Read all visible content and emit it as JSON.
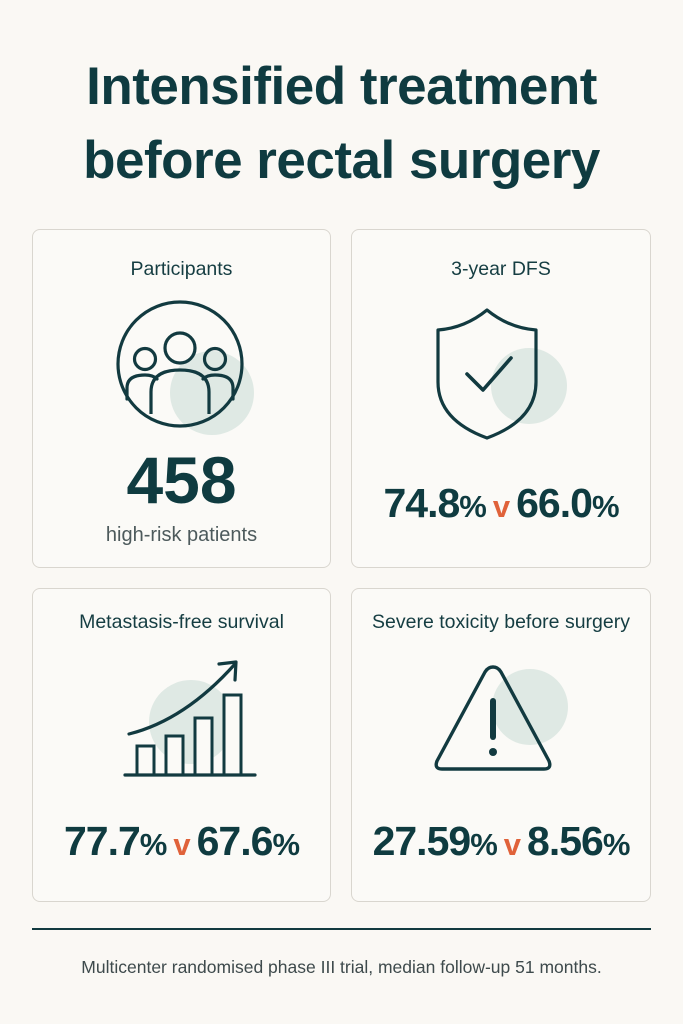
{
  "title": {
    "line1": "Intensified treatment",
    "line2": "before rectal surgery"
  },
  "colors": {
    "primary": "#0f3b40",
    "accent": "#e0623a",
    "tint": "#dfe9e4"
  },
  "cards": {
    "participants": {
      "title": "Participants",
      "icon": "people-group-icon",
      "value": "458",
      "label": "high-risk patients"
    },
    "dfs": {
      "title": "3-year DFS",
      "icon": "shield-check-icon",
      "a": "74.8",
      "a_unit": "%",
      "vs": "v",
      "b": "66.0",
      "b_unit": "%"
    },
    "mfs": {
      "title": "Metastasis-free survival",
      "icon": "growth-bar-chart-icon",
      "a": "77.7",
      "a_unit": "%",
      "vs": "v",
      "b": "67.6",
      "b_unit": "%"
    },
    "toxicity": {
      "title": "Severe toxicity before surgery",
      "icon": "warning-triangle-icon",
      "a": "27.59",
      "a_unit": "%",
      "vs": "v",
      "b": "8.56",
      "b_unit": "%"
    }
  },
  "footer": "Multicenter randomised phase III trial, median follow-up 51 months."
}
